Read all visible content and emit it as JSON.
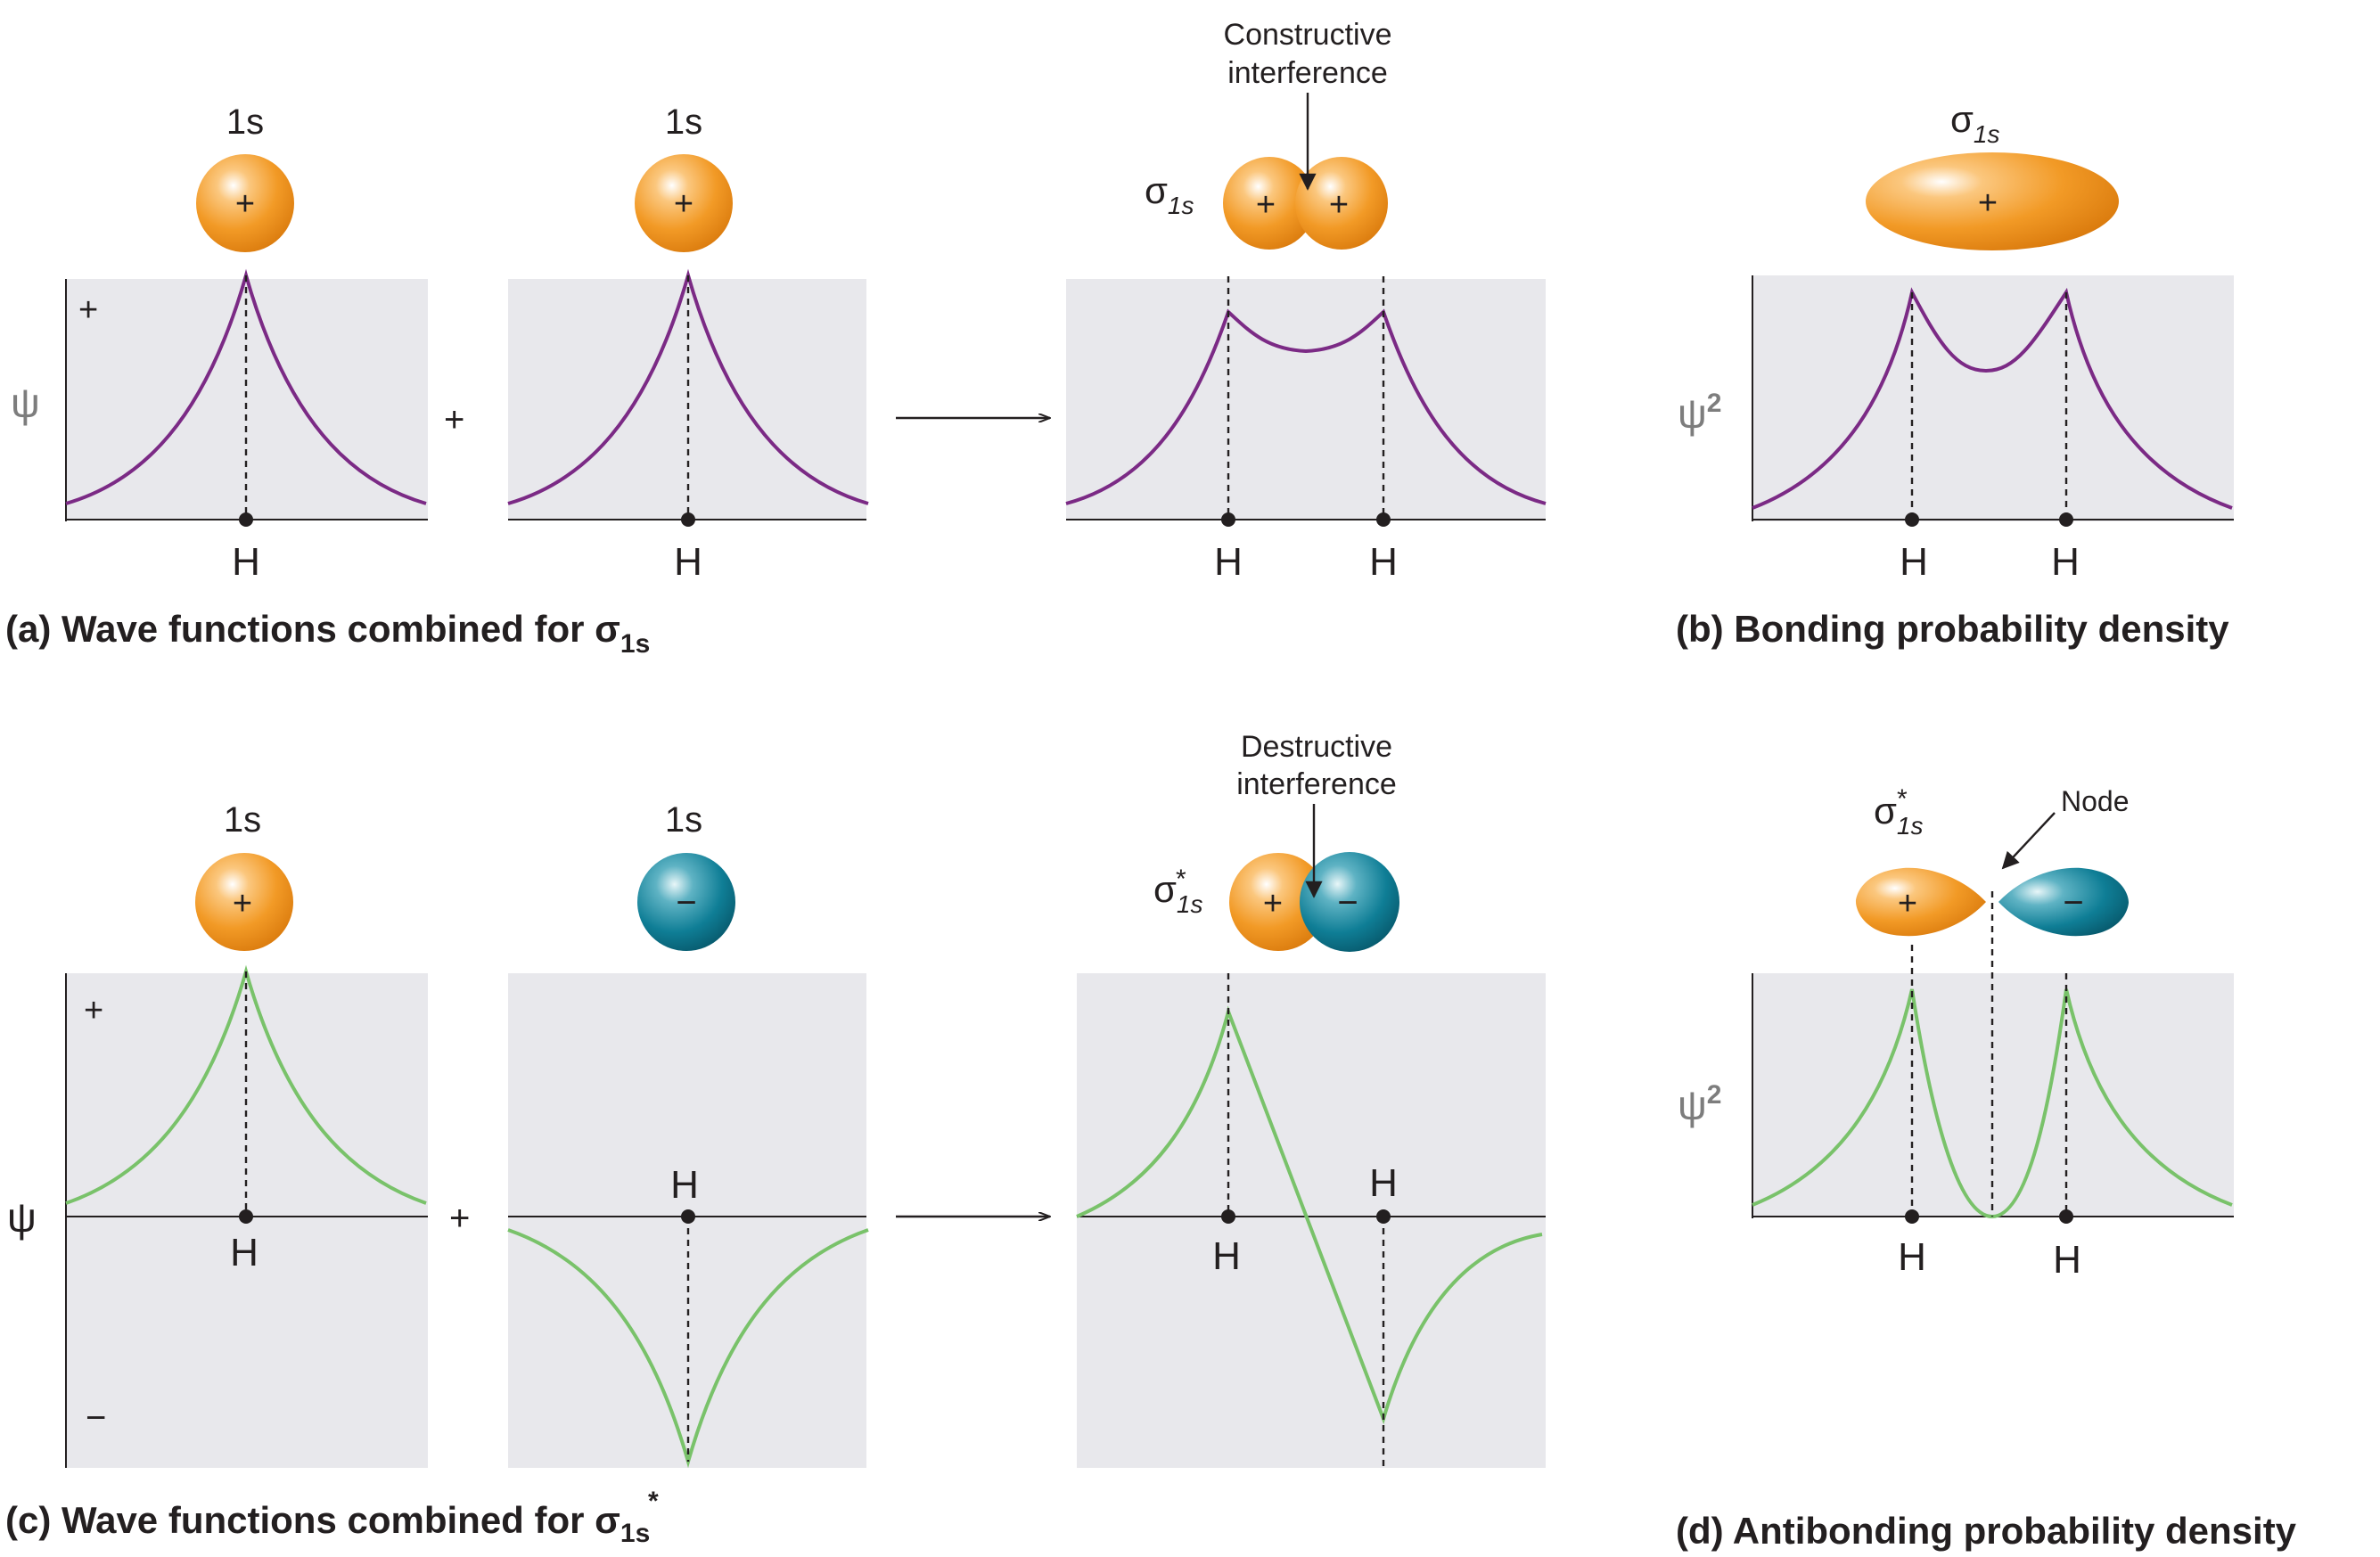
{
  "labels": {
    "orbital_1s": "1s",
    "plus": "+",
    "minus": "−",
    "psi": "ψ",
    "psi_squared": "ψ",
    "psi_squared_exp": "2",
    "nucleus": "H",
    "sigma": "σ",
    "sigma_sub": "1s",
    "star": "*",
    "node": "Node"
  },
  "annotations": {
    "constructive_line1": "Constructive",
    "constructive_line2": "interference",
    "destructive_line1": "Destructive",
    "destructive_line2": "interference"
  },
  "captions": {
    "a_text": "(a) Wave functions combined for σ",
    "a_sub": "1s",
    "b_text": "(b) Bonding probability density",
    "c_text": "(c) Wave functions combined for σ",
    "c_sub": "1s",
    "c_star": "*",
    "d_text": "(d) Antibonding probability density"
  },
  "colors": {
    "bonding_curve": "#7b2a85",
    "antibonding_curve": "#79c26a",
    "positive_lobe": "#f29a26",
    "negative_lobe": "#0f7e96",
    "plot_background": "#e8e8ec"
  }
}
